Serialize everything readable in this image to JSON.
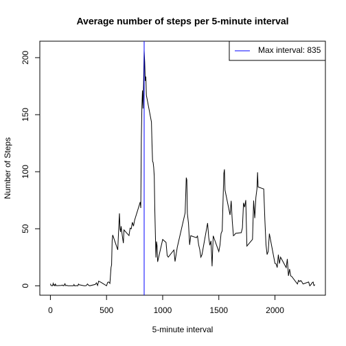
{
  "chart_data": {
    "type": "line",
    "title": "Average number of steps per 5-minute interval",
    "xlabel": "5-minute interval",
    "ylabel": "Number of Steps",
    "color": "#000000",
    "xlim": [
      -94.2,
      2449.2
    ],
    "ylim": [
      -8.25,
      214.42
    ],
    "xticks": [
      0,
      500,
      1000,
      1500,
      2000
    ],
    "yticks": [
      0,
      50,
      100,
      150,
      200
    ],
    "x": [
      0,
      5,
      10,
      15,
      20,
      25,
      30,
      35,
      40,
      45,
      50,
      55,
      100,
      105,
      110,
      115,
      120,
      125,
      130,
      135,
      140,
      145,
      150,
      155,
      200,
      205,
      210,
      215,
      220,
      225,
      230,
      235,
      240,
      245,
      250,
      255,
      300,
      310,
      320,
      330,
      340,
      350,
      400,
      410,
      420,
      430,
      440,
      450,
      500,
      510,
      520,
      530,
      540,
      545,
      550,
      555,
      600,
      610,
      615,
      620,
      625,
      630,
      640,
      650,
      655,
      700,
      710,
      720,
      730,
      740,
      750,
      800,
      805,
      810,
      815,
      820,
      825,
      830,
      835,
      840,
      845,
      850,
      855,
      900,
      905,
      910,
      915,
      920,
      925,
      930,
      935,
      940,
      945,
      950,
      955,
      1000,
      1030,
      1040,
      1050,
      1100,
      1110,
      1130,
      1200,
      1210,
      1215,
      1220,
      1230,
      1240,
      1250,
      1300,
      1310,
      1320,
      1330,
      1340,
      1350,
      1400,
      1410,
      1420,
      1430,
      1440,
      1450,
      1500,
      1510,
      1520,
      1530,
      1540,
      1545,
      1550,
      1555,
      1600,
      1610,
      1620,
      1630,
      1640,
      1650,
      1700,
      1710,
      1720,
      1730,
      1740,
      1750,
      1800,
      1810,
      1820,
      1830,
      1840,
      1845,
      1850,
      1900,
      1910,
      1920,
      1930,
      1940,
      1950,
      2000,
      2010,
      2020,
      2030,
      2040,
      2050,
      2100,
      2110,
      2120,
      2130,
      2140,
      2150,
      2200,
      2210,
      2220,
      2230,
      2240,
      2250,
      2300,
      2310,
      2320,
      2330,
      2340,
      2345,
      2350,
      2355
    ],
    "values": [
      1.7,
      0.3,
      0.1,
      0.2,
      0.1,
      2.1,
      0.5,
      0.9,
      0,
      1.5,
      0.3,
      0.1,
      0.3,
      0.7,
      0.2,
      0.3,
      0,
      1.1,
      1.8,
      0.2,
      0.2,
      0.4,
      0.3,
      0,
      0,
      0,
      1.1,
      0,
      0,
      0.1,
      0,
      0.2,
      0,
      0,
      1.5,
      0.9,
      0,
      0,
      0.2,
      1.6,
      0.5,
      0,
      1.2,
      2.6,
      0.3,
      4.1,
      3.5,
      3.1,
      0,
      3,
      3.3,
      2.1,
      16,
      18.3,
      39.5,
      44.5,
      31.5,
      53.8,
      63.5,
      50,
      47.1,
      52.2,
      44.1,
      37.4,
      49,
      44,
      50.5,
      49.9,
      55.7,
      52.3,
      57.5,
      73.4,
      68.2,
      129.4,
      157.5,
      171.2,
      155.4,
      177.3,
      206.2,
      195.9,
      179.6,
      183.4,
      167,
      143.5,
      124,
      109.1,
      108.1,
      103.7,
      95.9,
      66.2,
      45.2,
      24.8,
      38.8,
      35,
      21,
      40.6,
      38,
      26.5,
      25.1,
      31.4,
      21.3,
      33.8,
      63.9,
      94.8,
      92.8,
      63.4,
      54.5,
      35.9,
      43.9,
      42.2,
      43.6,
      36.1,
      31.8,
      25.1,
      27.3,
      55,
      42.4,
      35.5,
      39.4,
      17.1,
      43.8,
      30,
      35.5,
      45.9,
      48.1,
      82.9,
      98.7,
      102.1,
      83.96,
      62.1,
      74.5,
      56.4,
      43.9,
      44.7,
      46,
      46.6,
      50.7,
      72.7,
      68.9,
      75.1,
      34.8,
      40.7,
      74.7,
      59.3,
      77.4,
      85.3,
      99.5,
      86.6,
      84.9,
      58,
      36.1,
      27.4,
      30.2,
      45.7,
      19.6,
      19.3,
      16,
      27.3,
      19.5,
      25.1,
      15.9,
      23.5,
      8.7,
      14.7,
      8.7,
      8.1,
      1.6,
      4.8,
      3.7,
      4.6,
      3.3,
      1.6,
      3.3,
      0,
      1,
      2.6,
      3.3,
      0.6,
      0.2,
      1.1
    ],
    "vline": {
      "x": 835,
      "color": "#0000ff",
      "label": "Max interval: 835"
    },
    "legend": "topright"
  }
}
